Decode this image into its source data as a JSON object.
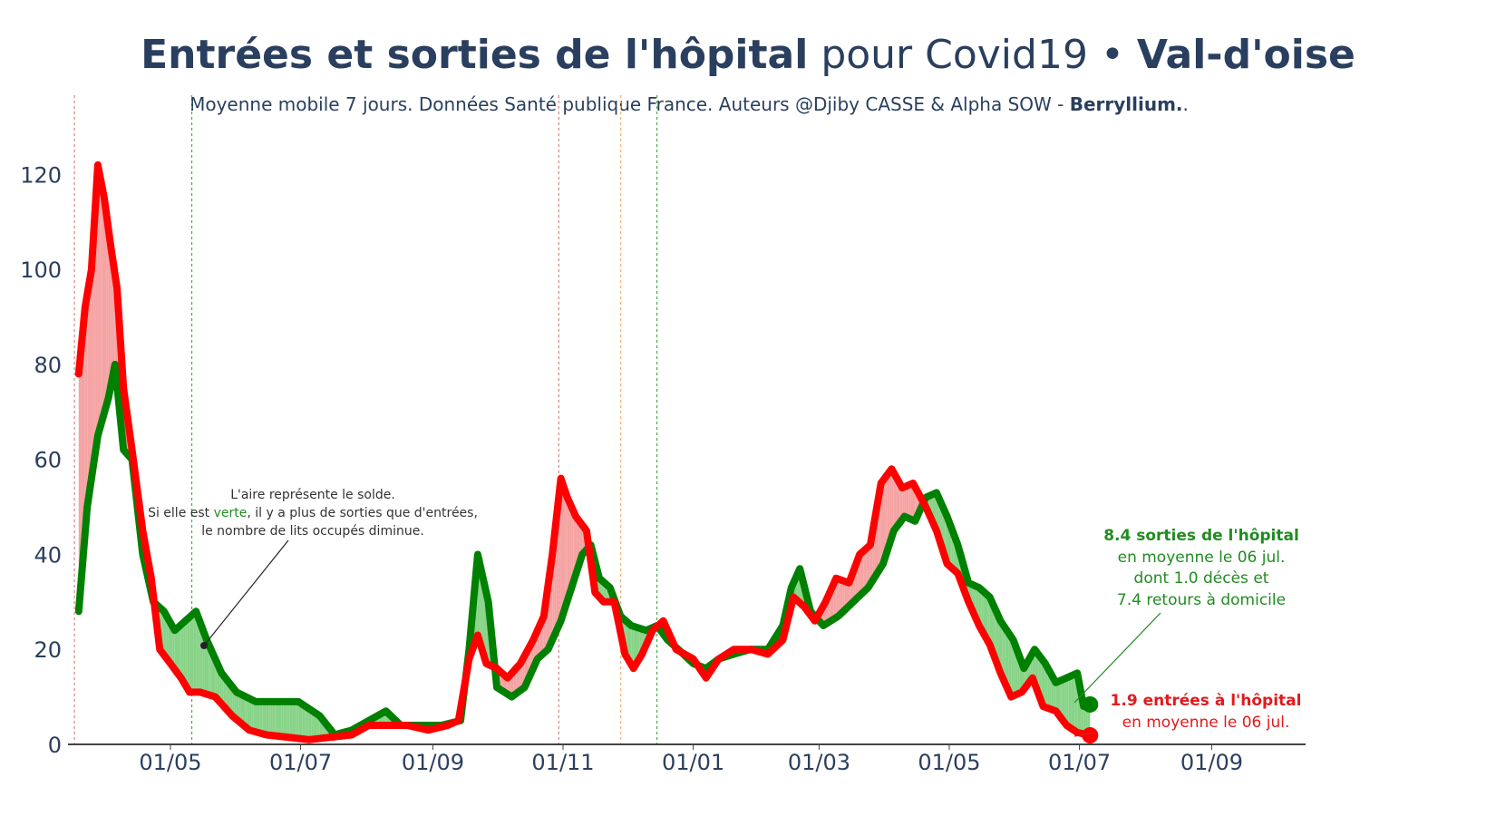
{
  "title": {
    "part1": "Entrées et sorties de l'hôpital",
    "part2": " pour Covid19 • ",
    "part3": "Val-d'oise"
  },
  "subtitle": {
    "text": "Moyenne mobile 7 jours. Données Santé publique France. Auteurs @Djiby CASSE & Alpha SOW - ",
    "brand": "Berryllium.",
    "suffix": "."
  },
  "annotation": {
    "line1": "L'aire représente le solde.",
    "line2a": "Si elle est ",
    "line2b": "verte",
    "line2c": ", il y a plus de sorties que d'entrées,",
    "line3": "le nombre de lits occupés diminue."
  },
  "label_sorties": {
    "line1": "8.4 sorties de l'hôpital",
    "line2": "en moyenne le 06 jul.",
    "line3": "dont 1.0 décès et",
    "line4": "7.4 retours à domicile"
  },
  "label_entrees": {
    "line1": "1.9 entrées à l'hôpital",
    "line2": "en moyenne le 06 jul."
  },
  "colors": {
    "sorties": "#008000",
    "entrees": "#ff0000",
    "fill_green": "#88d388",
    "fill_red": "#f5a3a3",
    "text": "#2a3f5f"
  },
  "chart_data": {
    "type": "line",
    "x_range": [
      "2020-03-14",
      "2021-10-15"
    ],
    "ylim": [
      0,
      130
    ],
    "y_ticks": [
      0,
      20,
      40,
      60,
      80,
      100,
      120
    ],
    "x_ticks": [
      {
        "date": "2020-05-01",
        "label": "01/05"
      },
      {
        "date": "2020-07-01",
        "label": "01/07"
      },
      {
        "date": "2020-09-01",
        "label": "01/09"
      },
      {
        "date": "2020-11-01",
        "label": "01/11"
      },
      {
        "date": "2021-01-01",
        "label": "01/01"
      },
      {
        "date": "2021-03-01",
        "label": "01/03"
      },
      {
        "date": "2021-05-01",
        "label": "01/05"
      },
      {
        "date": "2021-07-01",
        "label": "01/07"
      },
      {
        "date": "2021-09-01",
        "label": "01/09"
      }
    ],
    "vlines": [
      {
        "date": "2020-03-17",
        "color": "#e58a8a"
      },
      {
        "date": "2020-05-11",
        "color": "#4caf50"
      },
      {
        "date": "2020-10-30",
        "color": "#e58a8a"
      },
      {
        "date": "2020-11-28",
        "color": "#f2b27a"
      },
      {
        "date": "2020-12-15",
        "color": "#4caf50"
      }
    ],
    "series": [
      {
        "key": "sorties",
        "points": [
          [
            "2020-03-19",
            28
          ],
          [
            "2020-03-23",
            50
          ],
          [
            "2020-03-28",
            65
          ],
          [
            "2020-04-02",
            73
          ],
          [
            "2020-04-05",
            80
          ],
          [
            "2020-04-09",
            62
          ],
          [
            "2020-04-13",
            60
          ],
          [
            "2020-04-18",
            40
          ],
          [
            "2020-04-23",
            30
          ],
          [
            "2020-04-28",
            28
          ],
          [
            "2020-05-03",
            24
          ],
          [
            "2020-05-08",
            26
          ],
          [
            "2020-05-13",
            28
          ],
          [
            "2020-05-18",
            22
          ],
          [
            "2020-05-25",
            15
          ],
          [
            "2020-06-01",
            11
          ],
          [
            "2020-06-10",
            9
          ],
          [
            "2020-06-20",
            9
          ],
          [
            "2020-06-30",
            9
          ],
          [
            "2020-07-10",
            6
          ],
          [
            "2020-07-17",
            2
          ],
          [
            "2020-07-25",
            3
          ],
          [
            "2020-08-02",
            5
          ],
          [
            "2020-08-10",
            7
          ],
          [
            "2020-08-17",
            4
          ],
          [
            "2020-08-25",
            4
          ],
          [
            "2020-09-05",
            4
          ],
          [
            "2020-09-14",
            5
          ],
          [
            "2020-09-18",
            20
          ],
          [
            "2020-09-22",
            40
          ],
          [
            "2020-09-27",
            30
          ],
          [
            "2020-10-01",
            12
          ],
          [
            "2020-10-08",
            10
          ],
          [
            "2020-10-14",
            12
          ],
          [
            "2020-10-20",
            18
          ],
          [
            "2020-10-25",
            20
          ],
          [
            "2020-10-31",
            26
          ],
          [
            "2020-11-05",
            33
          ],
          [
            "2020-11-10",
            40
          ],
          [
            "2020-11-14",
            42
          ],
          [
            "2020-11-18",
            35
          ],
          [
            "2020-11-23",
            33
          ],
          [
            "2020-11-28",
            27
          ],
          [
            "2020-12-03",
            25
          ],
          [
            "2020-12-10",
            24
          ],
          [
            "2020-12-15",
            25
          ],
          [
            "2020-12-20",
            22
          ],
          [
            "2020-12-25",
            20
          ],
          [
            "2021-01-01",
            17
          ],
          [
            "2021-01-07",
            16
          ],
          [
            "2021-01-13",
            18
          ],
          [
            "2021-01-20",
            19
          ],
          [
            "2021-01-28",
            20
          ],
          [
            "2021-02-05",
            20
          ],
          [
            "2021-02-12",
            25
          ],
          [
            "2021-02-16",
            33
          ],
          [
            "2021-02-20",
            37
          ],
          [
            "2021-02-25",
            28
          ],
          [
            "2021-03-03",
            25
          ],
          [
            "2021-03-10",
            27
          ],
          [
            "2021-03-17",
            30
          ],
          [
            "2021-03-24",
            33
          ],
          [
            "2021-03-31",
            38
          ],
          [
            "2021-04-05",
            45
          ],
          [
            "2021-04-10",
            48
          ],
          [
            "2021-04-15",
            47
          ],
          [
            "2021-04-20",
            52
          ],
          [
            "2021-04-25",
            53
          ],
          [
            "2021-04-30",
            48
          ],
          [
            "2021-05-05",
            42
          ],
          [
            "2021-05-10",
            34
          ],
          [
            "2021-05-15",
            33
          ],
          [
            "2021-05-20",
            31
          ],
          [
            "2021-05-25",
            26
          ],
          [
            "2021-05-31",
            22
          ],
          [
            "2021-06-05",
            16
          ],
          [
            "2021-06-10",
            20
          ],
          [
            "2021-06-15",
            17
          ],
          [
            "2021-06-20",
            13
          ],
          [
            "2021-06-25",
            14
          ],
          [
            "2021-06-30",
            15
          ],
          [
            "2021-07-03",
            8
          ],
          [
            "2021-07-06",
            8.4
          ]
        ]
      },
      {
        "key": "entrees",
        "points": [
          [
            "2020-03-19",
            78
          ],
          [
            "2020-03-22",
            92
          ],
          [
            "2020-03-25",
            100
          ],
          [
            "2020-03-28",
            122
          ],
          [
            "2020-03-31",
            115
          ],
          [
            "2020-04-03",
            105
          ],
          [
            "2020-04-06",
            96
          ],
          [
            "2020-04-09",
            75
          ],
          [
            "2020-04-13",
            62
          ],
          [
            "2020-04-18",
            45
          ],
          [
            "2020-04-22",
            35
          ],
          [
            "2020-04-26",
            20
          ],
          [
            "2020-05-01",
            17
          ],
          [
            "2020-05-06",
            14
          ],
          [
            "2020-05-10",
            11
          ],
          [
            "2020-05-15",
            11
          ],
          [
            "2020-05-22",
            10
          ],
          [
            "2020-05-30",
            6
          ],
          [
            "2020-06-07",
            3
          ],
          [
            "2020-06-15",
            2
          ],
          [
            "2020-06-25",
            1.5
          ],
          [
            "2020-07-05",
            1
          ],
          [
            "2020-07-15",
            1.5
          ],
          [
            "2020-07-25",
            2
          ],
          [
            "2020-08-02",
            4
          ],
          [
            "2020-08-10",
            4
          ],
          [
            "2020-08-20",
            4
          ],
          [
            "2020-08-30",
            3
          ],
          [
            "2020-09-08",
            4
          ],
          [
            "2020-09-13",
            5
          ],
          [
            "2020-09-18",
            18
          ],
          [
            "2020-09-22",
            23
          ],
          [
            "2020-09-26",
            17
          ],
          [
            "2020-10-01",
            16
          ],
          [
            "2020-10-06",
            14
          ],
          [
            "2020-10-12",
            17
          ],
          [
            "2020-10-18",
            22
          ],
          [
            "2020-10-23",
            27
          ],
          [
            "2020-10-27",
            40
          ],
          [
            "2020-10-31",
            56
          ],
          [
            "2020-11-03",
            52
          ],
          [
            "2020-11-07",
            48
          ],
          [
            "2020-11-12",
            45
          ],
          [
            "2020-11-16",
            32
          ],
          [
            "2020-11-20",
            30
          ],
          [
            "2020-11-25",
            30
          ],
          [
            "2020-11-30",
            19
          ],
          [
            "2020-12-04",
            16
          ],
          [
            "2020-12-08",
            19
          ],
          [
            "2020-12-13",
            24
          ],
          [
            "2020-12-18",
            26
          ],
          [
            "2020-12-24",
            20
          ],
          [
            "2021-01-01",
            18
          ],
          [
            "2021-01-07",
            14
          ],
          [
            "2021-01-13",
            18
          ],
          [
            "2021-01-20",
            20
          ],
          [
            "2021-01-28",
            20
          ],
          [
            "2021-02-05",
            19
          ],
          [
            "2021-02-12",
            22
          ],
          [
            "2021-02-17",
            31
          ],
          [
            "2021-02-22",
            29
          ],
          [
            "2021-02-27",
            26
          ],
          [
            "2021-03-04",
            30
          ],
          [
            "2021-03-09",
            35
          ],
          [
            "2021-03-15",
            34
          ],
          [
            "2021-03-20",
            40
          ],
          [
            "2021-03-25",
            42
          ],
          [
            "2021-03-30",
            55
          ],
          [
            "2021-04-04",
            58
          ],
          [
            "2021-04-09",
            54
          ],
          [
            "2021-04-14",
            55
          ],
          [
            "2021-04-20",
            50
          ],
          [
            "2021-04-25",
            45
          ],
          [
            "2021-04-30",
            38
          ],
          [
            "2021-05-05",
            36
          ],
          [
            "2021-05-10",
            30
          ],
          [
            "2021-05-15",
            25
          ],
          [
            "2021-05-20",
            21
          ],
          [
            "2021-05-25",
            15
          ],
          [
            "2021-05-30",
            10
          ],
          [
            "2021-06-04",
            11
          ],
          [
            "2021-06-09",
            14
          ],
          [
            "2021-06-14",
            8
          ],
          [
            "2021-06-20",
            7
          ],
          [
            "2021-06-25",
            4
          ],
          [
            "2021-06-30",
            2.5
          ],
          [
            "2021-07-06",
            1.9
          ]
        ]
      }
    ]
  }
}
